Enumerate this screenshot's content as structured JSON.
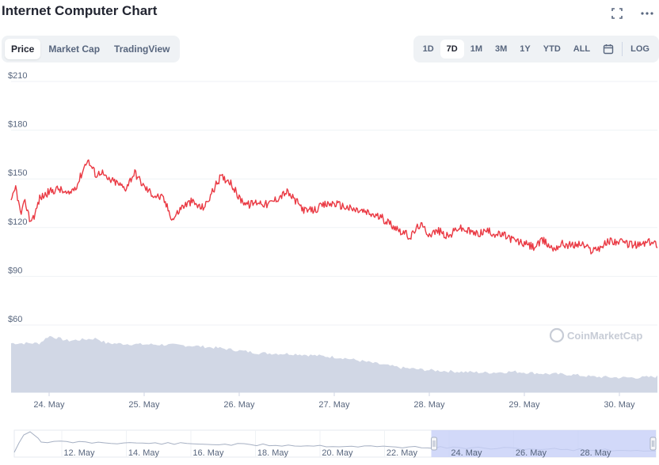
{
  "title": "Internet Computer Chart",
  "tabs": [
    {
      "label": "Price",
      "active": true
    },
    {
      "label": "Market Cap",
      "active": false
    },
    {
      "label": "TradingView",
      "active": false
    }
  ],
  "ranges": [
    {
      "label": "1D",
      "active": false
    },
    {
      "label": "7D",
      "active": true
    },
    {
      "label": "1M",
      "active": false
    },
    {
      "label": "3M",
      "active": false
    },
    {
      "label": "1Y",
      "active": false
    },
    {
      "label": "YTD",
      "active": false
    },
    {
      "label": "ALL",
      "active": false
    }
  ],
  "log_label": "LOG",
  "icons": {
    "fullscreen": "fullscreen-icon",
    "more": "more-dots-icon",
    "calendar": "calendar-icon"
  },
  "watermark": "CoinMarketCap",
  "colors": {
    "price_line": "#ea3943",
    "volume_fill": "#ccd3e2",
    "navigator_selection": "#c7cff7",
    "grid": "#eff2f5"
  },
  "chart_data": {
    "type": "line",
    "title": "",
    "ylabel": "",
    "xlabel": "",
    "y_ticks": [
      "$210",
      "$180",
      "$150",
      "$120",
      "$90",
      "$60"
    ],
    "y_tick_values": [
      210,
      180,
      150,
      120,
      90,
      60
    ],
    "ylim": [
      60,
      210
    ],
    "x_ticks": [
      "24. May",
      "25. May",
      "26. May",
      "27. May",
      "28. May",
      "29. May",
      "30. May"
    ],
    "x_tick_positions_days": [
      0.4,
      1.4,
      2.4,
      3.4,
      4.4,
      5.4,
      6.4
    ],
    "xlim_days": [
      0,
      6.8
    ],
    "series": [
      {
        "name": "",
        "kind": "price",
        "x": [
          0,
          0.05,
          0.1,
          0.15,
          0.2,
          0.25,
          0.3,
          0.4,
          0.5,
          0.6,
          0.7,
          0.8,
          0.9,
          0.95,
          1.0,
          1.1,
          1.2,
          1.3,
          1.4,
          1.5,
          1.6,
          1.7,
          1.8,
          1.9,
          2.0,
          2.05,
          2.1,
          2.2,
          2.3,
          2.4,
          2.5,
          2.6,
          2.7,
          2.8,
          2.9,
          3.0,
          3.1,
          3.2,
          3.3,
          3.4,
          3.5,
          3.6,
          3.7,
          3.8,
          3.9,
          4.0,
          4.1,
          4.2,
          4.3,
          4.4,
          4.5,
          4.6,
          4.7,
          4.8,
          4.9,
          5.0,
          5.1,
          5.2,
          5.3,
          5.4,
          5.5,
          5.6,
          5.7,
          5.8,
          5.9,
          6.0,
          6.1,
          6.2,
          6.3,
          6.4,
          6.5,
          6.6,
          6.7,
          6.8
        ],
        "values": [
          135,
          145,
          128,
          136,
          124,
          128,
          138,
          142,
          144,
          140,
          147,
          162,
          152,
          155,
          150,
          148,
          144,
          154,
          145,
          140,
          138,
          125,
          133,
          136,
          132,
          134,
          140,
          151,
          149,
          138,
          134,
          136,
          134,
          138,
          142,
          136,
          130,
          131,
          134,
          135,
          133,
          131,
          130,
          128,
          126,
          122,
          118,
          114,
          122,
          116,
          118,
          114,
          120,
          118,
          116,
          118,
          116,
          115,
          112,
          110,
          108,
          112,
          107,
          110,
          109,
          110,
          106,
          108,
          112,
          111,
          110,
          109,
          111,
          110
        ]
      },
      {
        "name": "",
        "kind": "volume",
        "x": [
          0,
          0.3,
          0.4,
          0.6,
          0.9,
          1.0,
          1.3,
          1.6,
          1.9,
          2.2,
          2.4,
          2.6,
          3.0,
          3.2,
          3.5,
          3.8,
          4.1,
          4.4,
          4.7,
          5.0,
          5.3,
          5.6,
          5.9,
          6.1,
          6.4,
          6.6,
          6.8
        ],
        "values": [
          1.0,
          1.0,
          1.15,
          1.05,
          1.1,
          1.0,
          0.98,
          0.97,
          0.95,
          0.9,
          0.85,
          0.8,
          0.78,
          0.75,
          0.7,
          0.6,
          0.5,
          0.45,
          0.42,
          0.4,
          0.42,
          0.38,
          0.36,
          0.32,
          0.3,
          0.3,
          0.32
        ]
      }
    ]
  },
  "navigator": {
    "ticks": [
      "12. May",
      "14. May",
      "16. May",
      "18. May",
      "20. May",
      "22. May",
      "24. May",
      "26. May",
      "28. May"
    ],
    "selection_start_fraction": 0.65,
    "selection_end_fraction": 1.0
  }
}
